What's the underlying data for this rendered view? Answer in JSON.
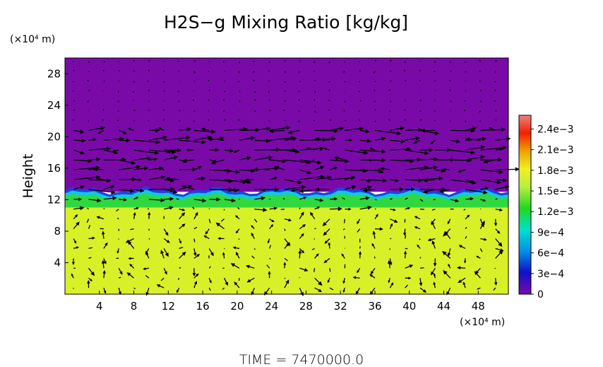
{
  "chart_data": {
    "type": "heatmap",
    "title": "H2S−g Mixing Ratio [kg/kg]",
    "ylabel": "Height",
    "x_unit_label": "(×10⁴ m)",
    "y_unit_label": "(×10⁴ m)",
    "footer": "TIME  =  7470000.0",
    "xlim": [
      0,
      51.5
    ],
    "ylim": [
      0,
      30
    ],
    "x_ticks": [
      "4",
      "8",
      "12",
      "16",
      "20",
      "24",
      "28",
      "32",
      "36",
      "40",
      "44",
      "48"
    ],
    "x_tick_values": [
      4,
      8,
      12,
      16,
      20,
      24,
      28,
      32,
      36,
      40,
      44,
      48
    ],
    "y_ticks": [
      "4",
      "8",
      "12",
      "16",
      "20",
      "24",
      "28"
    ],
    "y_tick_values": [
      4,
      8,
      12,
      16,
      20,
      24,
      28
    ],
    "colorbar": {
      "min": 0,
      "max": 0.0026,
      "ticks": [
        "0",
        "3e−4",
        "6e−4",
        "9e−4",
        "1.2e−3",
        "1.5e−3",
        "1.8e−3",
        "2.1e−3",
        "2.4e−3"
      ],
      "tick_values": [
        0,
        0.0003,
        0.0006,
        0.0009,
        0.0012,
        0.0015,
        0.0018,
        0.0021,
        0.0024
      ],
      "colors": [
        "#7a0aa8",
        "#1010c8",
        "#00a0e8",
        "#00e8c0",
        "#20d820",
        "#b8f040",
        "#f0f020",
        "#f0a000",
        "#f02000",
        "#f08070"
      ]
    },
    "field": {
      "upper_value": 0,
      "lower_value": 0.0017,
      "band_value": 0.0013,
      "layer_top_height": 13,
      "layer_bottom_height": 11
    },
    "colors": {
      "upper": "#7a0aa8",
      "lower": "#d8f028",
      "band_green": "#30d840",
      "band_cyan": "#10c8e0",
      "band_blue": "#2040e0",
      "vectors": "#000000"
    }
  }
}
